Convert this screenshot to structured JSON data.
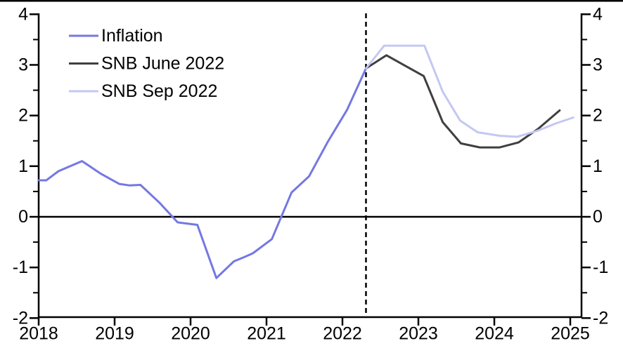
{
  "chart": {
    "background": "#ffffff",
    "top_border_color": "#000000",
    "axis_color": "#000000",
    "text_color": "#000000"
  },
  "chart_data": {
    "type": "line",
    "title": "",
    "xlabel": "",
    "ylabel": "",
    "x_range": [
      2018,
      2025.15
    ],
    "y_range": [
      -2,
      4
    ],
    "grid": false,
    "legend_position": "top-left",
    "x_ticks": [
      {
        "value": 2018,
        "label": "2018"
      },
      {
        "value": 2019,
        "label": "2019"
      },
      {
        "value": 2020,
        "label": "2020"
      },
      {
        "value": 2021,
        "label": "2021"
      },
      {
        "value": 2022,
        "label": "2022"
      },
      {
        "value": 2023,
        "label": "2023"
      },
      {
        "value": 2024,
        "label": "2024"
      },
      {
        "value": 2025,
        "label": "2025"
      }
    ],
    "y_ticks": [
      {
        "value": 4,
        "label": "4"
      },
      {
        "value": 3,
        "label": "3"
      },
      {
        "value": 2,
        "label": "2"
      },
      {
        "value": 1,
        "label": "1"
      },
      {
        "value": 0,
        "label": "0"
      },
      {
        "value": -1,
        "label": "-1"
      },
      {
        "value": -2,
        "label": "-2"
      }
    ],
    "y_minor_ticks": [
      -1.5,
      -0.5,
      0.5,
      1.5,
      2.5,
      3.5
    ],
    "zero_line": true,
    "forecast_vline_x": 2022.31,
    "series": [
      {
        "name": "Inflation",
        "color": "#7478e2",
        "points": [
          [
            2018.0,
            0.72
          ],
          [
            2018.1,
            0.72
          ],
          [
            2018.26,
            0.9
          ],
          [
            2018.57,
            1.1
          ],
          [
            2018.82,
            0.85
          ],
          [
            2019.06,
            0.65
          ],
          [
            2019.2,
            0.62
          ],
          [
            2019.34,
            0.63
          ],
          [
            2019.59,
            0.28
          ],
          [
            2019.83,
            -0.11
          ],
          [
            2019.99,
            -0.14
          ],
          [
            2020.09,
            -0.16
          ],
          [
            2020.34,
            -1.21
          ],
          [
            2020.57,
            -0.88
          ],
          [
            2020.7,
            -0.8
          ],
          [
            2020.82,
            -0.72
          ],
          [
            2021.07,
            -0.44
          ],
          [
            2021.33,
            0.48
          ],
          [
            2021.56,
            0.8
          ],
          [
            2021.81,
            1.49
          ],
          [
            2022.06,
            2.11
          ],
          [
            2022.31,
            2.93
          ]
        ]
      },
      {
        "name": "SNB June 2022",
        "color": "#3f3f3f",
        "points": [
          [
            2022.31,
            2.93
          ],
          [
            2022.58,
            3.19
          ],
          [
            2022.83,
            2.98
          ],
          [
            2023.07,
            2.78
          ],
          [
            2023.32,
            1.87
          ],
          [
            2023.56,
            1.45
          ],
          [
            2023.81,
            1.37
          ],
          [
            2024.07,
            1.37
          ],
          [
            2024.32,
            1.47
          ],
          [
            2024.58,
            1.74
          ],
          [
            2024.86,
            2.1
          ]
        ]
      },
      {
        "name": "SNB Sep 2022",
        "color": "#c3c8f2",
        "points": [
          [
            2022.31,
            2.93
          ],
          [
            2022.55,
            3.38
          ],
          [
            2023.08,
            3.38
          ],
          [
            2023.32,
            2.47
          ],
          [
            2023.55,
            1.9
          ],
          [
            2023.78,
            1.67
          ],
          [
            2024.07,
            1.6
          ],
          [
            2024.3,
            1.58
          ],
          [
            2024.57,
            1.7
          ],
          [
            2024.82,
            1.85
          ],
          [
            2025.04,
            1.96
          ]
        ]
      }
    ]
  }
}
